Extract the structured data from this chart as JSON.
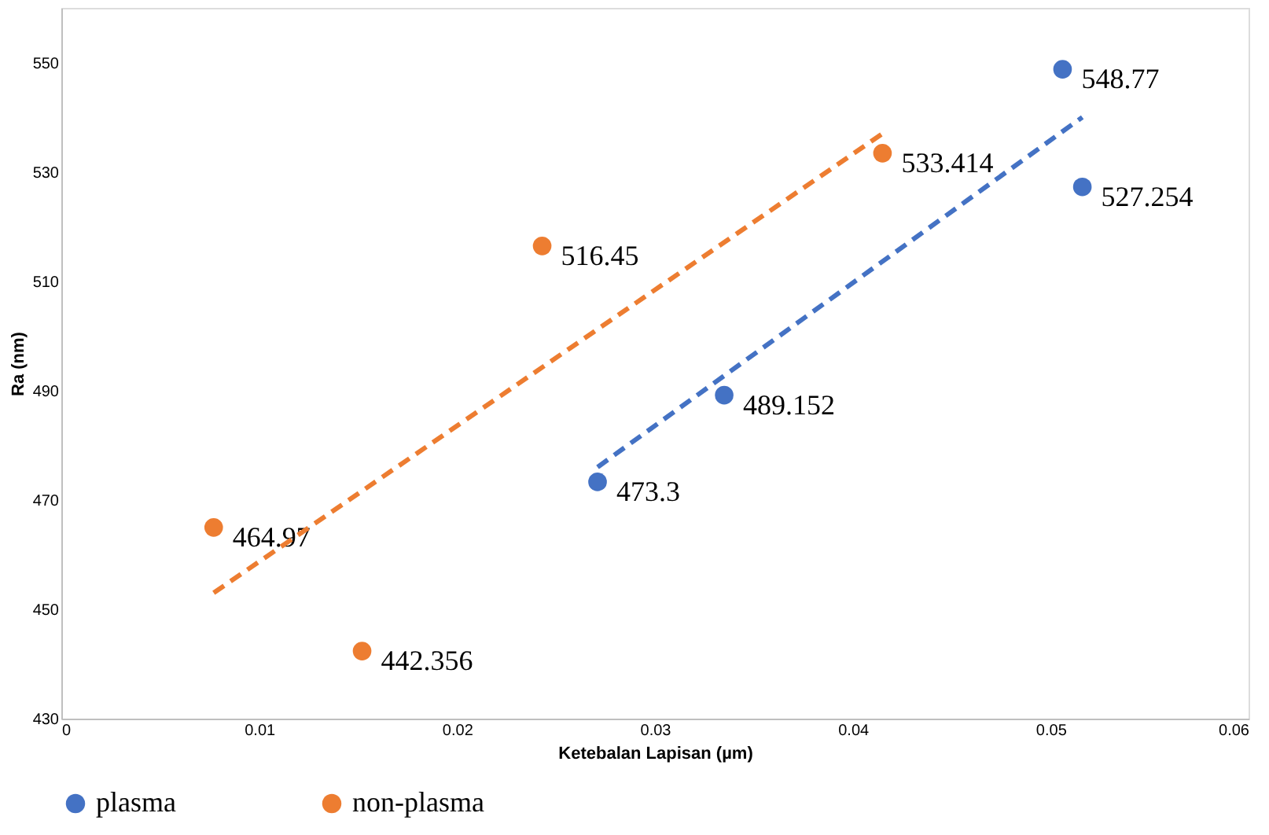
{
  "chart_data": {
    "type": "scatter",
    "xlabel": "Ketebalan Lapisan (µm)",
    "ylabel": "Ra (nm)",
    "xlim": [
      0,
      0.06
    ],
    "xticks": [
      0,
      0.01,
      0.02,
      0.03,
      0.04,
      0.05,
      0.06
    ],
    "ylim": [
      430,
      560
    ],
    "yticks": [
      430,
      450,
      470,
      490,
      510,
      530,
      550
    ],
    "grid": false,
    "legend": "bottom",
    "marker": "circle",
    "series": [
      {
        "name": "plasma",
        "color": "#4472c4",
        "x": [
          0.0506,
          0.0516,
          0.0335,
          0.0271
        ],
        "values": [
          548.77,
          527.254,
          489.152,
          473.3
        ],
        "value_labels": [
          "548.77",
          "527.254",
          "489.152",
          "473.3"
        ]
      },
      {
        "name": "non-plasma",
        "color": "#ed7d31",
        "x": [
          0.0077,
          0.0152,
          0.0243,
          0.0415
        ],
        "values": [
          464.97,
          442.356,
          516.45,
          533.414
        ],
        "value_labels": [
          "464.97",
          "442.356",
          "516.45",
          "533.414"
        ]
      },
      {
        "type": "line",
        "marker": "none",
        "color": "#4472c4",
        "line_style": "dashed",
        "x": [
          0.0271,
          0.0516
        ],
        "values": [
          476,
          540
        ]
      },
      {
        "type": "line",
        "marker": "none",
        "color": "#ed7d31",
        "line_style": "dashed",
        "x": [
          0.0077,
          0.0415
        ],
        "values": [
          453,
          537
        ]
      }
    ]
  }
}
